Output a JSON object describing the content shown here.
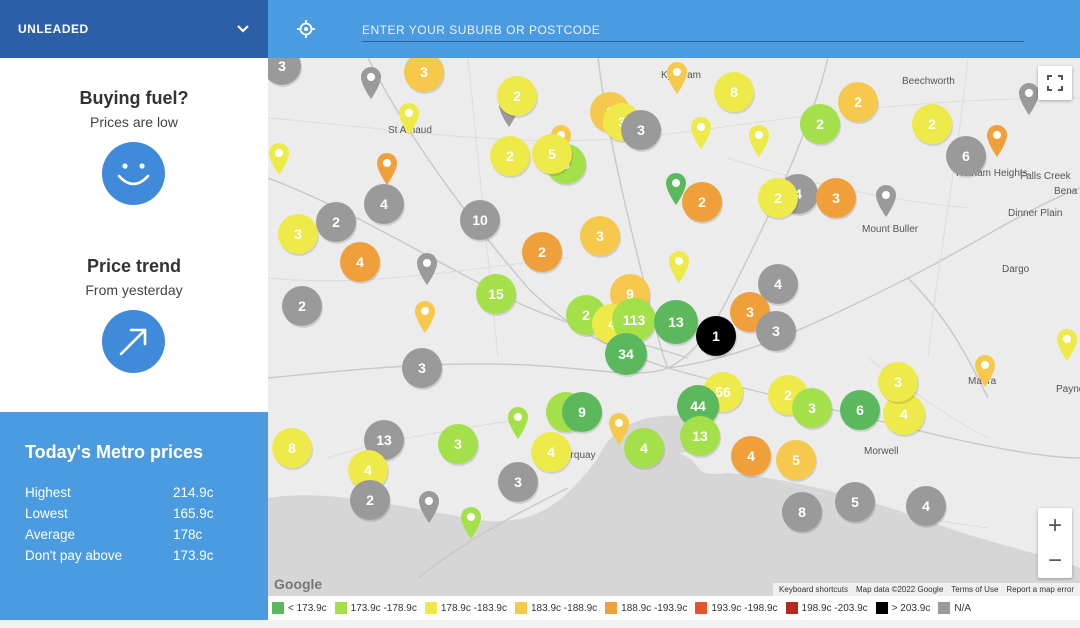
{
  "fuel_selector": {
    "label": "UNLEADED"
  },
  "search": {
    "placeholder": "ENTER YOUR SUBURB OR POSTCODE"
  },
  "buying": {
    "title": "Buying fuel?",
    "subtitle": "Prices are low",
    "icon": "smiley-icon"
  },
  "trend": {
    "title": "Price trend",
    "subtitle": "From yesterday",
    "icon": "arrow-up-right-icon"
  },
  "metro": {
    "title": "Today's Metro prices",
    "rows": [
      {
        "label": "Highest",
        "value": "214.9c"
      },
      {
        "label": "Lowest",
        "value": "165.9c"
      },
      {
        "label": "Average",
        "value": "178c"
      },
      {
        "label": "Don't pay above",
        "value": "173.9c"
      }
    ]
  },
  "colors": {
    "c1": "#5cb85c",
    "c2": "#a4e04a",
    "c3": "#eeea4a",
    "c4": "#f6c84c",
    "c5": "#f0a03a",
    "c6": "#e8542c",
    "c7": "#b52a1c",
    "c8": "#000000",
    "na": "#9a9a9a"
  },
  "legend": [
    {
      "label": "< 173.9c",
      "color": "c1"
    },
    {
      "label": "173.9c -178.9c",
      "color": "c2"
    },
    {
      "label": "178.9c -183.9c",
      "color": "c3"
    },
    {
      "label": "183.9c -188.9c",
      "color": "c4"
    },
    {
      "label": "188.9c -193.9c",
      "color": "c5"
    },
    {
      "label": "193.9c -198.9c",
      "color": "c6"
    },
    {
      "label": "198.9c -203.9c",
      "color": "c7"
    },
    {
      "label": "> 203.9c",
      "color": "c8"
    },
    {
      "label": "N/A",
      "color": "na"
    }
  ],
  "places": [
    "Kyabram",
    "Beechworth",
    "St Arnaud",
    "Falls Creek",
    "Hotham Heights",
    "Dinner Plain",
    "Mount Buller",
    "Dargo",
    "Maffra",
    "Torquay",
    "Morwell",
    "Bena",
    "Payne"
  ],
  "clusters": [
    {
      "n": "3",
      "c": "na"
    },
    {
      "n": "3",
      "c": "c4"
    },
    {
      "n": "2",
      "c": "c3"
    },
    {
      "n": "8",
      "c": "c3"
    },
    {
      "n": "2",
      "c": "c4"
    },
    {
      "n": "3",
      "c": "c3"
    },
    {
      "n": "2",
      "c": "c3"
    },
    {
      "n": "3",
      "c": "na"
    },
    {
      "n": "2",
      "c": "c2"
    },
    {
      "n": "6",
      "c": "na"
    },
    {
      "n": "2",
      "c": "c3"
    },
    {
      "n": "2",
      "c": "c4"
    },
    {
      "n": "3",
      "c": "c2"
    },
    {
      "n": "10",
      "c": "na"
    },
    {
      "n": "5",
      "c": "c3"
    },
    {
      "n": "4",
      "c": "na"
    },
    {
      "n": "2",
      "c": "c5"
    },
    {
      "n": "2",
      "c": "na"
    },
    {
      "n": "4",
      "c": "na"
    },
    {
      "n": "3",
      "c": "c3"
    },
    {
      "n": "4",
      "c": "c5"
    },
    {
      "n": "3",
      "c": "c4"
    },
    {
      "n": "3",
      "c": "c5"
    },
    {
      "n": "2",
      "c": "c3"
    },
    {
      "n": "2",
      "c": "c5"
    },
    {
      "n": "4",
      "c": "na"
    },
    {
      "n": "15",
      "c": "c2"
    },
    {
      "n": "9",
      "c": "c4"
    },
    {
      "n": "2",
      "c": "na"
    },
    {
      "n": "2",
      "c": "c2"
    },
    {
      "n": "4",
      "c": "c3"
    },
    {
      "n": "113",
      "c": "c2"
    },
    {
      "n": "13",
      "c": "c1"
    },
    {
      "n": "1",
      "c": "c8"
    },
    {
      "n": "3",
      "c": "c5"
    },
    {
      "n": "3",
      "c": "na"
    },
    {
      "n": "34",
      "c": "c1"
    },
    {
      "n": "3",
      "c": "na"
    },
    {
      "n": "56",
      "c": "c3"
    },
    {
      "n": "2",
      "c": "c3"
    },
    {
      "n": "3",
      "c": "c2"
    },
    {
      "n": "6",
      "c": "c1"
    },
    {
      "n": "4",
      "c": "c3"
    },
    {
      "n": "3",
      "c": "c3"
    },
    {
      "n": "2",
      "c": "c2"
    },
    {
      "n": "9",
      "c": "c1"
    },
    {
      "n": "44",
      "c": "c1"
    },
    {
      "n": "13",
      "c": "c2"
    },
    {
      "n": "13",
      "c": "na"
    },
    {
      "n": "3",
      "c": "c2"
    },
    {
      "n": "4",
      "c": "c3"
    },
    {
      "n": "4",
      "c": "c2"
    },
    {
      "n": "8",
      "c": "c3"
    },
    {
      "n": "4",
      "c": "c3"
    },
    {
      "n": "3",
      "c": "na"
    },
    {
      "n": "4",
      "c": "c5"
    },
    {
      "n": "5",
      "c": "c4"
    },
    {
      "n": "2",
      "c": "na"
    },
    {
      "n": "8",
      "c": "na"
    },
    {
      "n": "5",
      "c": "na"
    },
    {
      "n": "4",
      "c": "na"
    }
  ],
  "map": {
    "google_logo": "Google",
    "attribution": [
      "Keyboard shortcuts",
      "Map data ©2022 Google",
      "Terms of Use",
      "Report a map error"
    ]
  }
}
